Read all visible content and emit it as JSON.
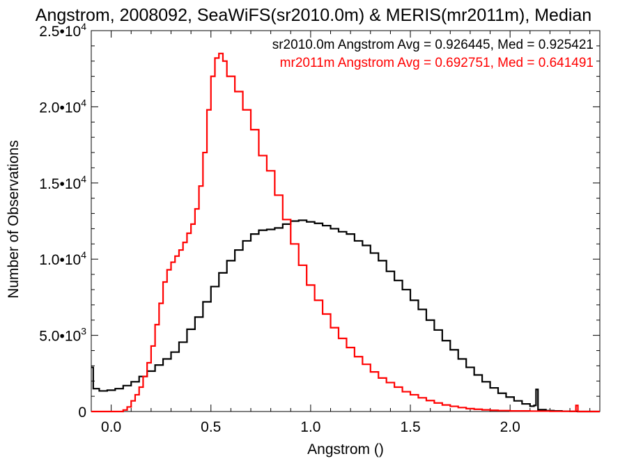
{
  "chart_data": {
    "type": "line",
    "step": true,
    "title": "Angstrom, 2008092, SeaWiFS(sr2010.0m) & MERIS(mr2011m), Median",
    "xlabel": "Angstrom ()",
    "ylabel": "Number of Observations",
    "xlim": [
      -0.1,
      2.45
    ],
    "ylim": [
      0,
      25000
    ],
    "x_ticks": [
      0.0,
      0.5,
      1.0,
      1.5,
      2.0
    ],
    "x_tick_labels": [
      "0.0",
      "0.5",
      "1.0",
      "1.5",
      "2.0"
    ],
    "y_ticks": [
      0,
      5000,
      10000,
      15000,
      20000,
      25000
    ],
    "y_tick_labels": [
      {
        "mant": "0",
        "exp": ""
      },
      {
        "mant": "5.0•10",
        "exp": "3"
      },
      {
        "mant": "1.0•10",
        "exp": "4"
      },
      {
        "mant": "1.5•10",
        "exp": "4"
      },
      {
        "mant": "2.0•10",
        "exp": "4"
      },
      {
        "mant": "2.5•10",
        "exp": "4"
      }
    ],
    "annotations": [
      {
        "text": "sr2010.0m Angstrom Avg = 0.926445, Med = 0.925421",
        "color": "#000000"
      },
      {
        "text": "mr2011m Angstrom Avg = 0.692751, Med = 0.641491",
        "color": "#ff0000"
      }
    ],
    "series": [
      {
        "name": "sr2010.0m",
        "color": "#000000",
        "points": [
          [
            -0.1,
            2900
          ],
          [
            -0.09,
            1500
          ],
          [
            -0.06,
            1350
          ],
          [
            -0.02,
            1400
          ],
          [
            0.02,
            1500
          ],
          [
            0.06,
            1700
          ],
          [
            0.1,
            1950
          ],
          [
            0.14,
            2300
          ],
          [
            0.18,
            2650
          ],
          [
            0.22,
            3050
          ],
          [
            0.26,
            3450
          ],
          [
            0.3,
            3900
          ],
          [
            0.34,
            4550
          ],
          [
            0.38,
            5400
          ],
          [
            0.42,
            6200
          ],
          [
            0.46,
            7200
          ],
          [
            0.5,
            8200
          ],
          [
            0.54,
            9100
          ],
          [
            0.58,
            9900
          ],
          [
            0.62,
            10600
          ],
          [
            0.66,
            11200
          ],
          [
            0.7,
            11650
          ],
          [
            0.74,
            11900
          ],
          [
            0.78,
            11950
          ],
          [
            0.82,
            12050
          ],
          [
            0.86,
            12300
          ],
          [
            0.9,
            12500
          ],
          [
            0.94,
            12550
          ],
          [
            0.98,
            12450
          ],
          [
            1.02,
            12350
          ],
          [
            1.06,
            12200
          ],
          [
            1.1,
            12000
          ],
          [
            1.14,
            11800
          ],
          [
            1.18,
            11650
          ],
          [
            1.22,
            11200
          ],
          [
            1.26,
            10900
          ],
          [
            1.3,
            10400
          ],
          [
            1.34,
            9900
          ],
          [
            1.38,
            9200
          ],
          [
            1.42,
            8600
          ],
          [
            1.46,
            8000
          ],
          [
            1.5,
            7300
          ],
          [
            1.54,
            6700
          ],
          [
            1.58,
            6000
          ],
          [
            1.62,
            5350
          ],
          [
            1.66,
            4650
          ],
          [
            1.7,
            4050
          ],
          [
            1.74,
            3450
          ],
          [
            1.78,
            2900
          ],
          [
            1.82,
            2400
          ],
          [
            1.86,
            1950
          ],
          [
            1.9,
            1550
          ],
          [
            1.94,
            1200
          ],
          [
            1.98,
            950
          ],
          [
            2.02,
            700
          ],
          [
            2.06,
            500
          ],
          [
            2.1,
            350
          ],
          [
            2.12,
            400
          ],
          [
            2.13,
            1450
          ],
          [
            2.14,
            120
          ],
          [
            2.18,
            60
          ],
          [
            2.22,
            40
          ],
          [
            2.26,
            20
          ],
          [
            2.3,
            10
          ],
          [
            2.34,
            0
          ],
          [
            2.45,
            0
          ]
        ]
      },
      {
        "name": "mr2011m",
        "color": "#ff0000",
        "points": [
          [
            -0.1,
            0
          ],
          [
            0.04,
            0
          ],
          [
            0.06,
            100
          ],
          [
            0.08,
            300
          ],
          [
            0.1,
            700
          ],
          [
            0.12,
            1100
          ],
          [
            0.14,
            1600
          ],
          [
            0.16,
            2300
          ],
          [
            0.18,
            3200
          ],
          [
            0.2,
            4300
          ],
          [
            0.22,
            5700
          ],
          [
            0.24,
            7100
          ],
          [
            0.26,
            8500
          ],
          [
            0.28,
            9300
          ],
          [
            0.3,
            9800
          ],
          [
            0.32,
            10200
          ],
          [
            0.34,
            10600
          ],
          [
            0.36,
            11100
          ],
          [
            0.38,
            11700
          ],
          [
            0.4,
            12300
          ],
          [
            0.42,
            13300
          ],
          [
            0.44,
            14800
          ],
          [
            0.46,
            17000
          ],
          [
            0.48,
            19800
          ],
          [
            0.5,
            22000
          ],
          [
            0.52,
            23200
          ],
          [
            0.54,
            23500
          ],
          [
            0.56,
            23000
          ],
          [
            0.58,
            22000
          ],
          [
            0.62,
            21000
          ],
          [
            0.66,
            19800
          ],
          [
            0.7,
            18500
          ],
          [
            0.74,
            16800
          ],
          [
            0.78,
            15800
          ],
          [
            0.82,
            14200
          ],
          [
            0.86,
            12600
          ],
          [
            0.9,
            11000
          ],
          [
            0.94,
            9600
          ],
          [
            0.98,
            8300
          ],
          [
            1.02,
            7300
          ],
          [
            1.06,
            6400
          ],
          [
            1.1,
            5500
          ],
          [
            1.14,
            4800
          ],
          [
            1.18,
            4200
          ],
          [
            1.22,
            3600
          ],
          [
            1.26,
            3100
          ],
          [
            1.3,
            2600
          ],
          [
            1.34,
            2200
          ],
          [
            1.38,
            1900
          ],
          [
            1.42,
            1600
          ],
          [
            1.46,
            1300
          ],
          [
            1.5,
            1100
          ],
          [
            1.54,
            900
          ],
          [
            1.58,
            720
          ],
          [
            1.62,
            560
          ],
          [
            1.66,
            430
          ],
          [
            1.7,
            340
          ],
          [
            1.74,
            260
          ],
          [
            1.78,
            190
          ],
          [
            1.82,
            150
          ],
          [
            1.86,
            110
          ],
          [
            1.9,
            80
          ],
          [
            1.94,
            60
          ],
          [
            2.0,
            40
          ],
          [
            2.1,
            25
          ],
          [
            2.2,
            15
          ],
          [
            2.3,
            10
          ],
          [
            2.33,
            400
          ],
          [
            2.34,
            0
          ],
          [
            2.45,
            0
          ]
        ]
      }
    ]
  }
}
